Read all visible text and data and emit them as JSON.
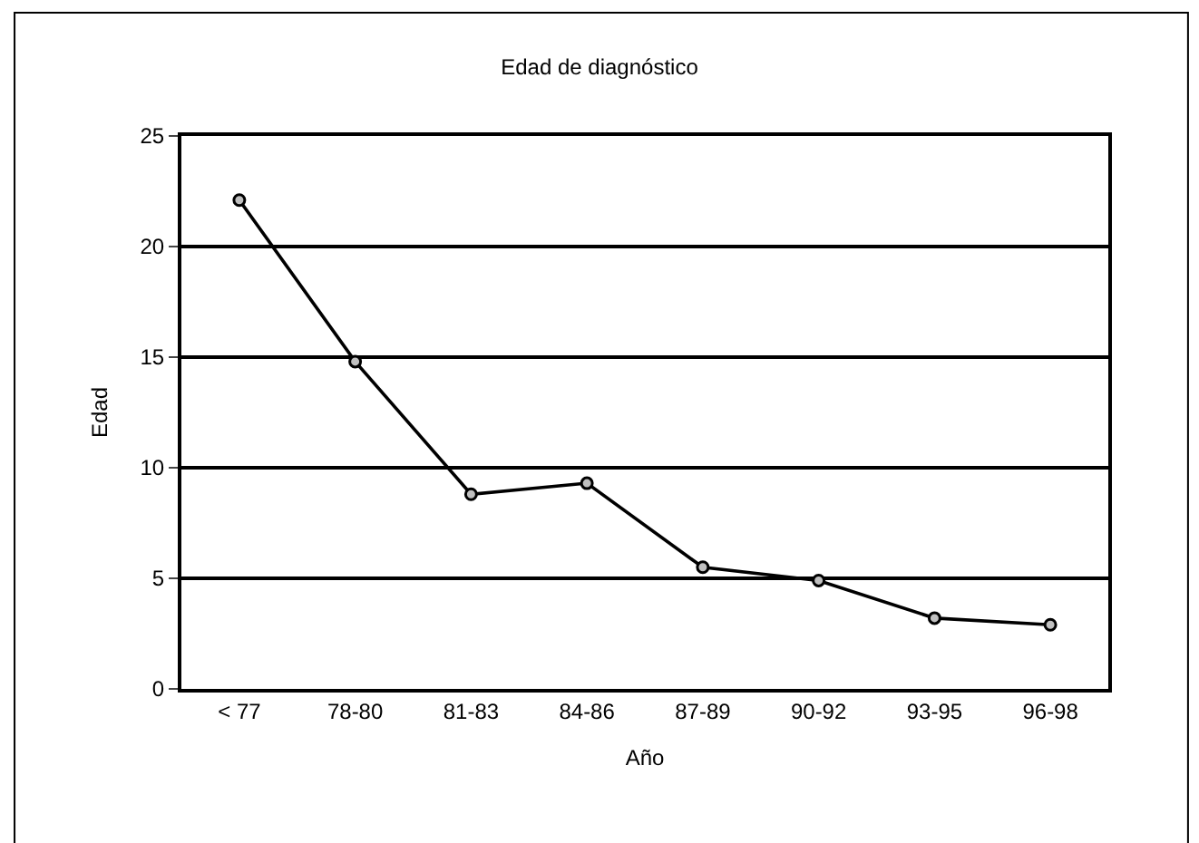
{
  "chart_data": {
    "type": "line",
    "title": "Edad de diagnóstico",
    "xlabel": "Año",
    "ylabel": "Edad",
    "categories": [
      "< 77",
      "78-80",
      "81-83",
      "84-86",
      "87-89",
      "90-92",
      "93-95",
      "96-98"
    ],
    "series": [
      {
        "color": "#000000",
        "values": [
          22.1,
          14.8,
          8.8,
          9.3,
          5.5,
          4.9,
          3.2,
          2.9
        ]
      }
    ],
    "ylim": [
      0,
      25
    ],
    "yticks": [
      0,
      5,
      10,
      15,
      20,
      25
    ],
    "grid": "y",
    "marker": "circle",
    "line_style": "solid"
  }
}
